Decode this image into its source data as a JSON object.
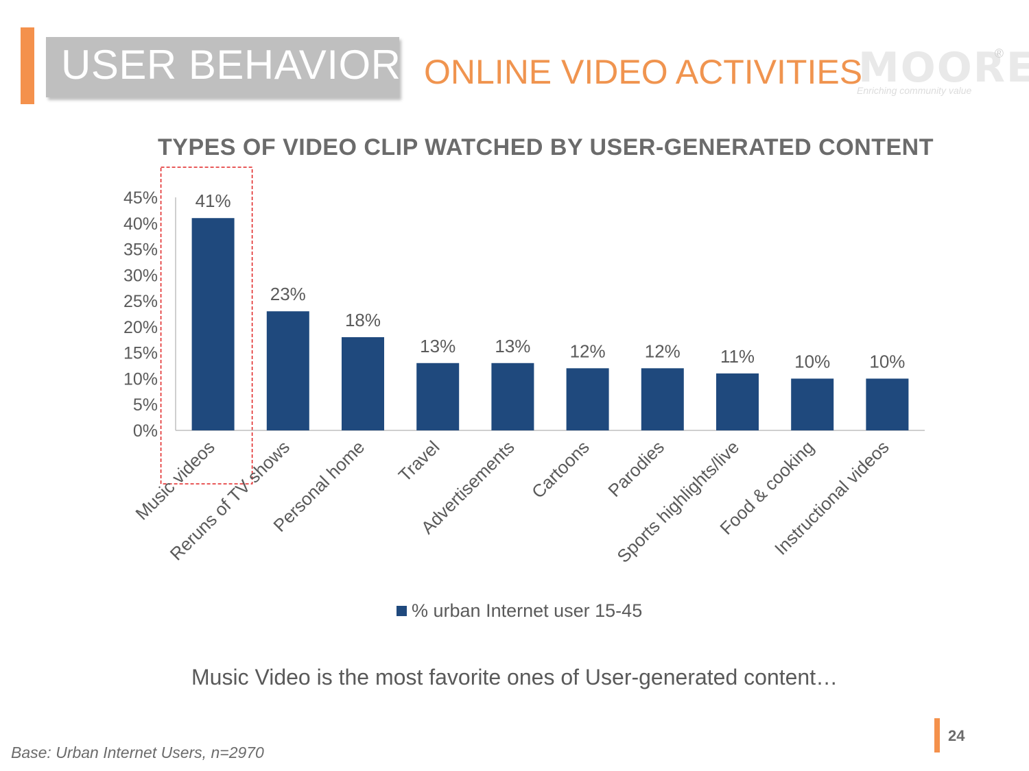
{
  "slide": {
    "section_title": "USER BEHAVIOR",
    "subtitle": "ONLINE VIDEO ACTIVITIES",
    "logo_text": "MOORE",
    "logo_reg": "®",
    "logo_tagline": "Enriching community value",
    "takeaway": "Music Video is the most favorite ones of User-generated content…",
    "page_number": "24",
    "base_note": "Base: Urban Internet Users, n=2970",
    "colors": {
      "accent": "#f4914c",
      "bar": "#1f497d",
      "highlight_box": "#e02020"
    }
  },
  "chart_data": {
    "type": "bar",
    "title": "TYPES OF VIDEO CLIP WATCHED BY USER-GENERATED CONTENT",
    "categories": [
      "Music videos",
      "Reruns of TV shows",
      "Personal home",
      "Travel",
      "Advertisements",
      "Cartoons",
      "Parodies",
      "Sports highlights/live",
      "Food & cooking",
      "Instructional videos"
    ],
    "series": [
      {
        "name": "% urban Internet user 15-45",
        "values": [
          41,
          23,
          18,
          13,
          13,
          12,
          12,
          11,
          10,
          10
        ]
      }
    ],
    "data_labels": [
      "41%",
      "23%",
      "18%",
      "13%",
      "13%",
      "12%",
      "12%",
      "11%",
      "10%",
      "10%"
    ],
    "y_ticks": [
      "0%",
      "5%",
      "10%",
      "15%",
      "20%",
      "25%",
      "30%",
      "35%",
      "40%",
      "45%"
    ],
    "ylim": [
      0,
      45
    ],
    "xlabel": "",
    "ylabel": "",
    "grid": false,
    "legend_position": "bottom",
    "highlighted_category": "Music videos"
  }
}
